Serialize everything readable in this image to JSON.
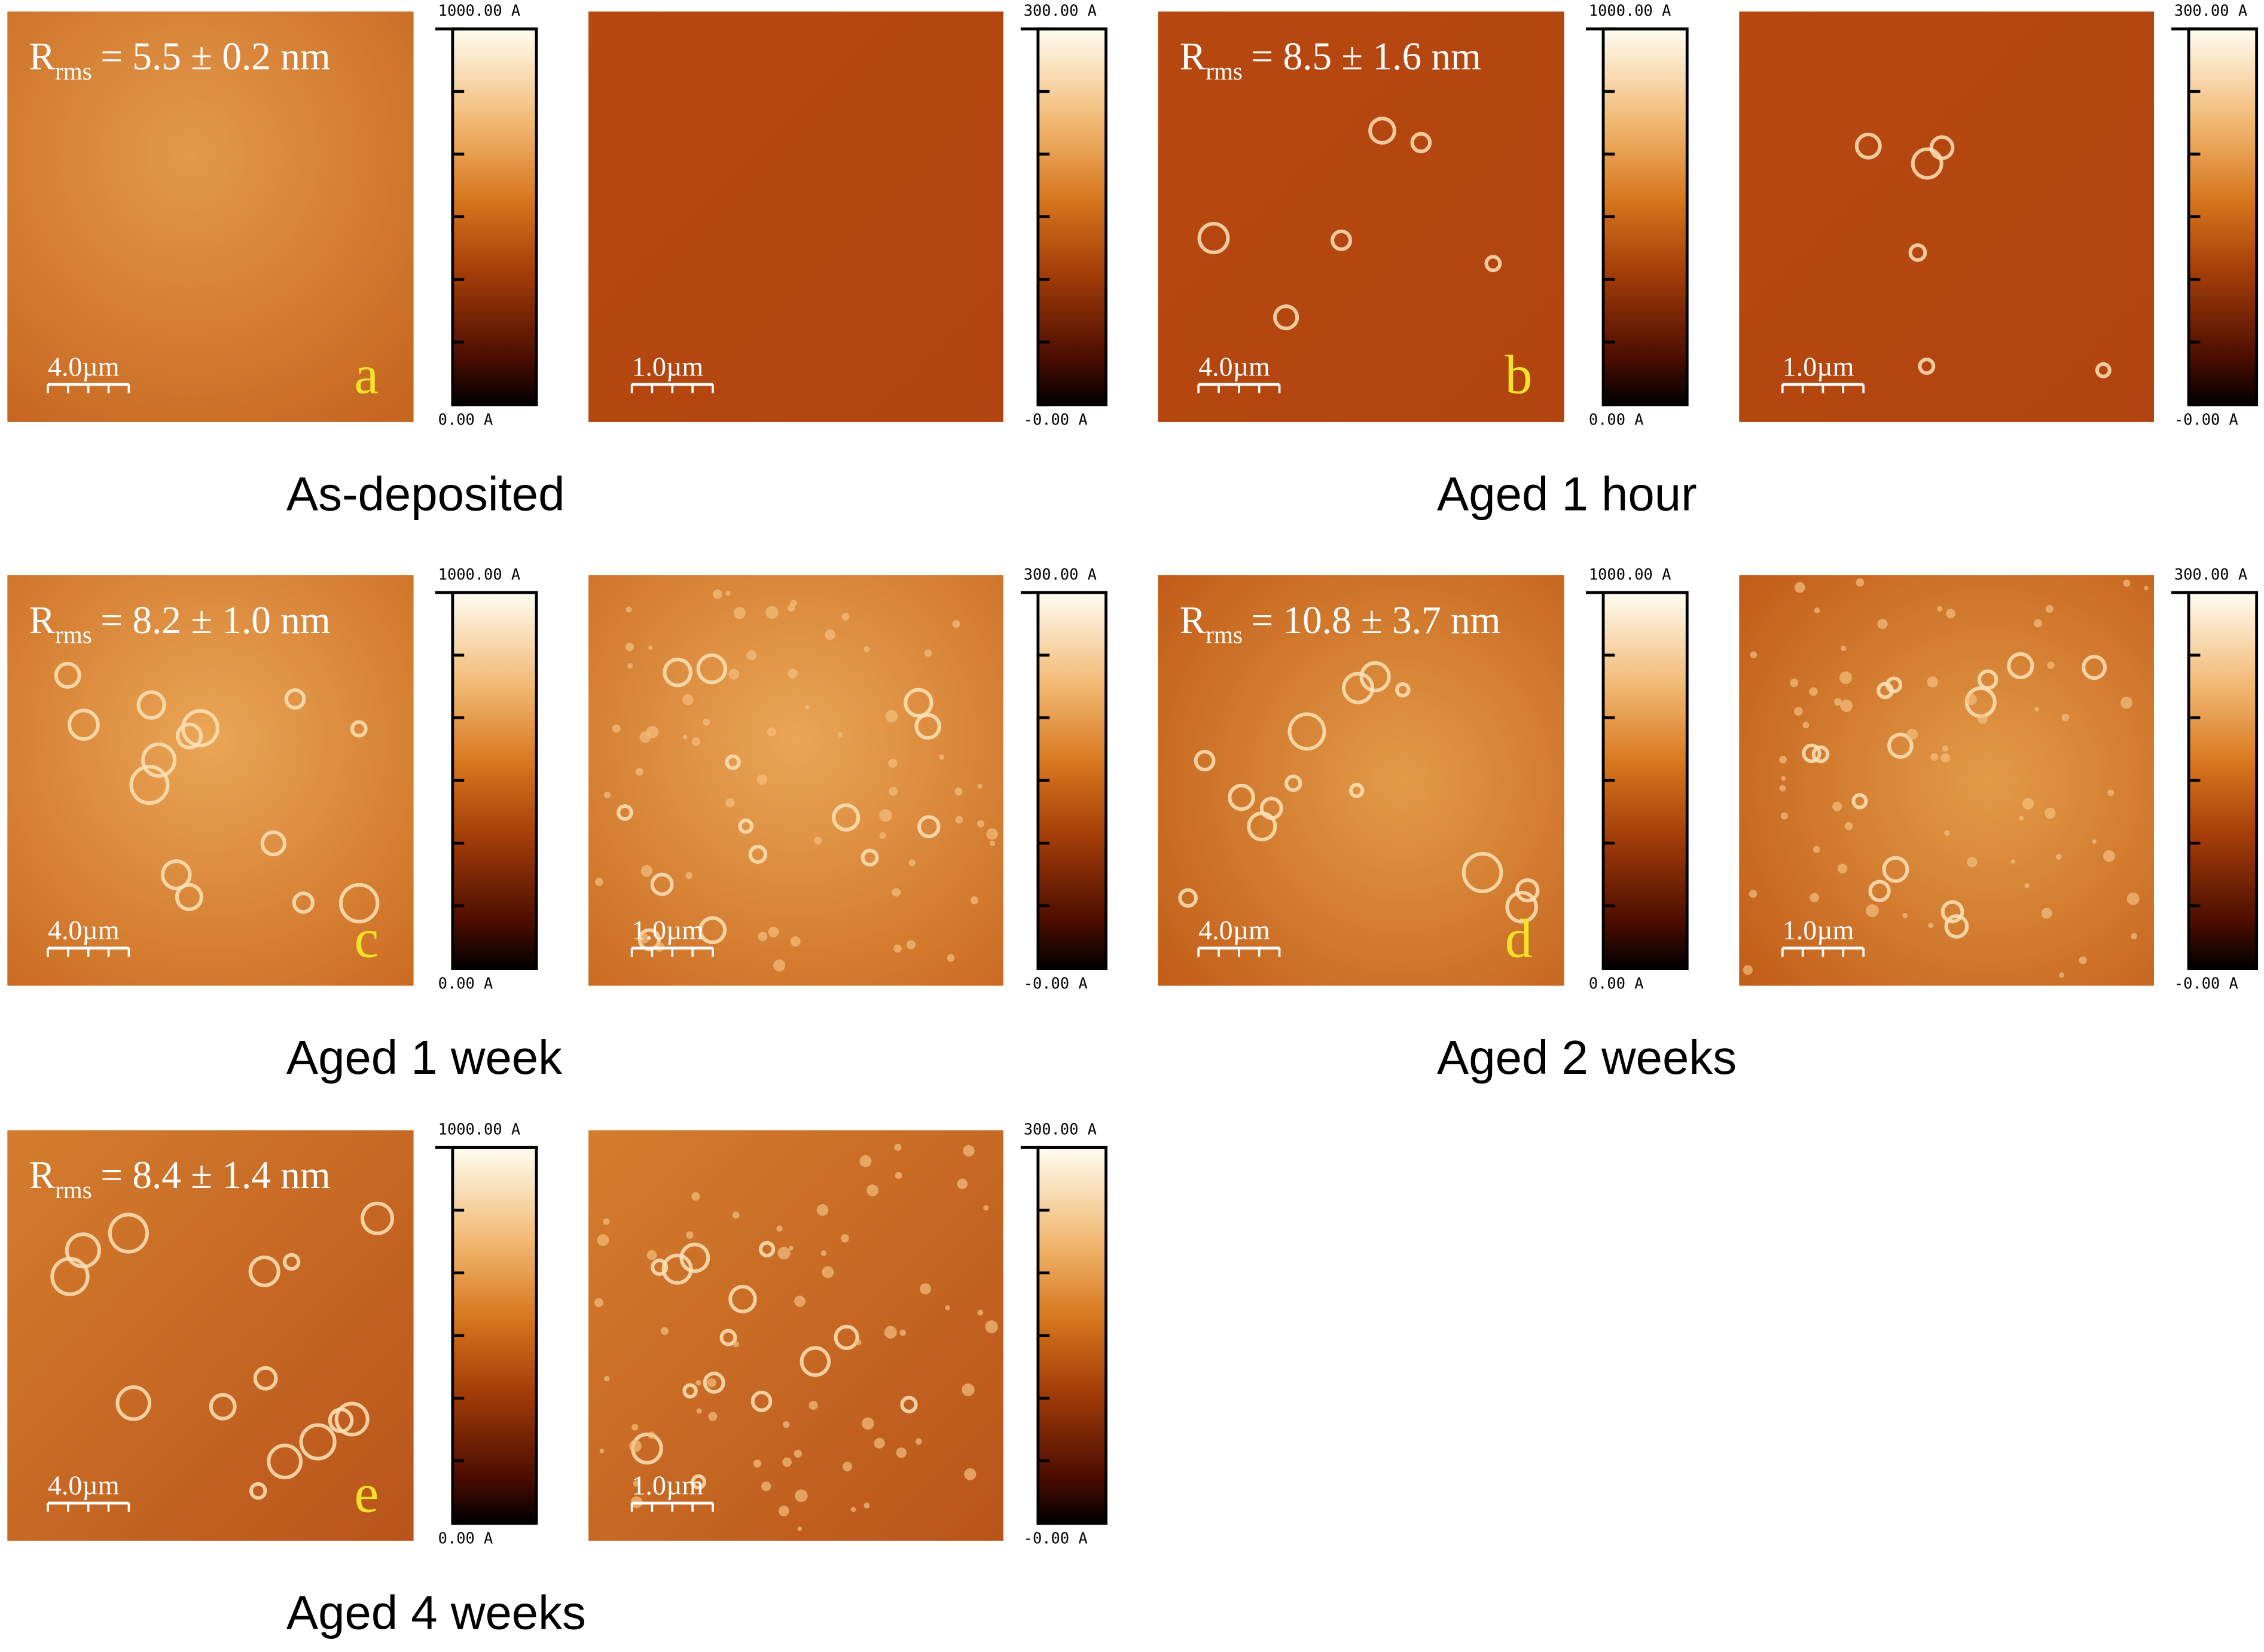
{
  "groups": [
    {
      "caption": "As-deposited",
      "panels": [
        {
          "roughness": {
            "symbol": "R",
            "subscript": "rms",
            "value": "= 5.5 ± 0.2 nm"
          },
          "letter": "a",
          "scale": "4.0µm",
          "colorbar": {
            "max": "1000.00 A",
            "min": "0.00 A"
          }
        },
        {
          "scale": "1.0µm",
          "colorbar": {
            "max": "300.00 A",
            "min": "-0.00 A"
          }
        }
      ]
    },
    {
      "caption": "Aged 1 hour",
      "panels": [
        {
          "roughness": {
            "symbol": "R",
            "subscript": "rms",
            "value": "= 8.5 ± 1.6 nm"
          },
          "letter": "b",
          "scale": "4.0µm",
          "colorbar": {
            "max": "1000.00 A",
            "min": "0.00 A"
          }
        },
        {
          "scale": "1.0µm",
          "colorbar": {
            "max": "300.00 A",
            "min": "-0.00 A"
          }
        }
      ]
    },
    {
      "caption": "Aged 1 week",
      "panels": [
        {
          "roughness": {
            "symbol": "R",
            "subscript": "rms",
            "value": "= 8.2 ± 1.0 nm"
          },
          "letter": "c",
          "scale": "4.0µm",
          "colorbar": {
            "max": "1000.00 A",
            "min": "0.00 A"
          }
        },
        {
          "scale": "1.0µm",
          "colorbar": {
            "max": "300.00 A",
            "min": "-0.00 A"
          }
        }
      ]
    },
    {
      "caption": "Aged 2 weeks",
      "panels": [
        {
          "roughness": {
            "symbol": "R",
            "subscript": "rms",
            "value": "= 10.8 ± 3.7 nm"
          },
          "letter": "d",
          "scale": "4.0µm",
          "colorbar": {
            "max": "1000.00 A",
            "min": "0.00 A"
          }
        },
        {
          "scale": "1.0µm",
          "colorbar": {
            "max": "300.00 A",
            "min": "-0.00 A"
          }
        }
      ]
    },
    {
      "caption": "Aged 4 weeks",
      "panels": [
        {
          "roughness": {
            "symbol": "R",
            "subscript": "rms",
            "value": "= 8.4 ± 1.4 nm"
          },
          "letter": "e",
          "scale": "4.0µm",
          "colorbar": {
            "max": "1000.00 A",
            "min": "0.00 A"
          }
        },
        {
          "scale": "1.0µm",
          "colorbar": {
            "max": "300.00 A",
            "min": "-0.00 A"
          }
        }
      ]
    }
  ]
}
